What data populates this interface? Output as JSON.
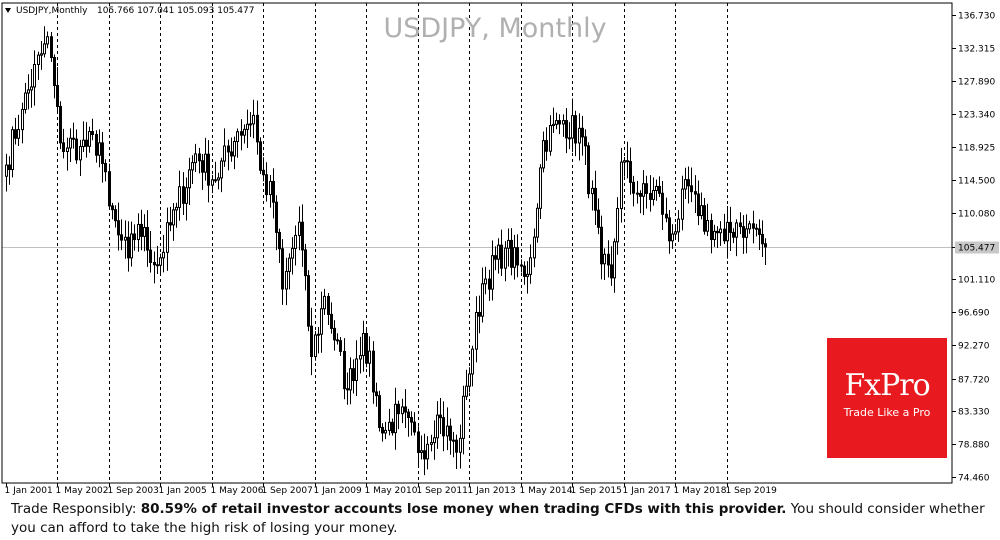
{
  "chart_data": {
    "type": "candlestick",
    "symbol_header": "USDJPY,Monthly",
    "ohlc_header": "105.766 107.041 105.093 105.477",
    "watermark_title": "USDJPY, Monthly",
    "current_price": "105.477",
    "ylim": [
      74.46,
      136.73
    ],
    "y_ticks": [
      "136.730",
      "132.315",
      "127.890",
      "123.340",
      "118.925",
      "114.500",
      "110.080",
      "105.477",
      "101.110",
      "96.690",
      "92.270",
      "87.720",
      "83.330",
      "78.880",
      "74.460"
    ],
    "x_ticks": [
      "1 Jan 2001",
      "1 May 2002",
      "1 Sep 2003",
      "1 Jan 2005",
      "1 May 2006",
      "1 Sep 2007",
      "1 Jan 2009",
      "1 May 2010",
      "1 Sep 2011",
      "1 Jan 2013",
      "1 May 2014",
      "1 Sep 2015",
      "1 Jan 2017",
      "1 May 2018",
      "1 Sep 2019"
    ],
    "grid": "vertical dashed at x ticks",
    "close_anchors": [
      [
        "2001-01",
        116.5
      ],
      [
        "2001-06",
        124.0
      ],
      [
        "2001-12",
        131.5
      ],
      [
        "2002-02",
        133.8
      ],
      [
        "2002-06",
        119.5
      ],
      [
        "2002-12",
        119.0
      ],
      [
        "2003-06",
        119.5
      ],
      [
        "2003-09",
        111.0
      ],
      [
        "2003-12",
        107.1
      ],
      [
        "2004-03",
        104.0
      ],
      [
        "2004-06",
        108.5
      ],
      [
        "2004-12",
        103.0
      ],
      [
        "2005-06",
        110.8
      ],
      [
        "2005-12",
        118.0
      ],
      [
        "2006-06",
        114.5
      ],
      [
        "2007-01",
        121.0
      ],
      [
        "2007-06",
        123.2
      ],
      [
        "2007-08",
        115.8
      ],
      [
        "2007-12",
        111.5
      ],
      [
        "2008-03",
        99.8
      ],
      [
        "2008-08",
        108.8
      ],
      [
        "2008-12",
        90.7
      ],
      [
        "2009-04",
        98.8
      ],
      [
        "2009-11",
        86.2
      ],
      [
        "2010-04",
        93.8
      ],
      [
        "2010-10",
        80.4
      ],
      [
        "2011-03",
        83.0
      ],
      [
        "2011-10",
        78.0
      ],
      [
        "2012-03",
        82.8
      ],
      [
        "2012-09",
        77.8
      ],
      [
        "2012-12",
        86.7
      ],
      [
        "2013-05",
        100.5
      ],
      [
        "2013-12",
        105.3
      ],
      [
        "2014-06",
        101.5
      ],
      [
        "2014-08",
        104.0
      ],
      [
        "2014-12",
        119.8
      ],
      [
        "2015-06",
        122.5
      ],
      [
        "2015-12",
        120.3
      ],
      [
        "2016-06",
        103.2
      ],
      [
        "2016-09",
        101.3
      ],
      [
        "2016-12",
        116.9
      ],
      [
        "2017-06",
        112.3
      ],
      [
        "2017-12",
        112.7
      ],
      [
        "2018-03",
        106.3
      ],
      [
        "2018-09",
        113.7
      ],
      [
        "2018-12",
        109.7
      ],
      [
        "2019-08",
        106.3
      ],
      [
        "2019-12",
        108.7
      ],
      [
        "2020-03",
        107.9
      ],
      [
        "2020-06",
        107.9
      ],
      [
        "2020-08",
        105.9
      ],
      [
        "2020-09",
        105.477
      ]
    ],
    "colors": {
      "candle": "#000000",
      "price_line": "#c0c0c0",
      "grid": "#000000"
    }
  },
  "brand": {
    "name": "FxPro",
    "tagline": "Trade Like a Pro",
    "color": "#e8191f"
  },
  "disclaimer": {
    "prefix": "Trade Responsibly: ",
    "bold": "80.59% of retail investor accounts lose money when trading CFDs with this provider.",
    "suffix": " You should consider whether you can afford to take the high risk of losing your money."
  }
}
